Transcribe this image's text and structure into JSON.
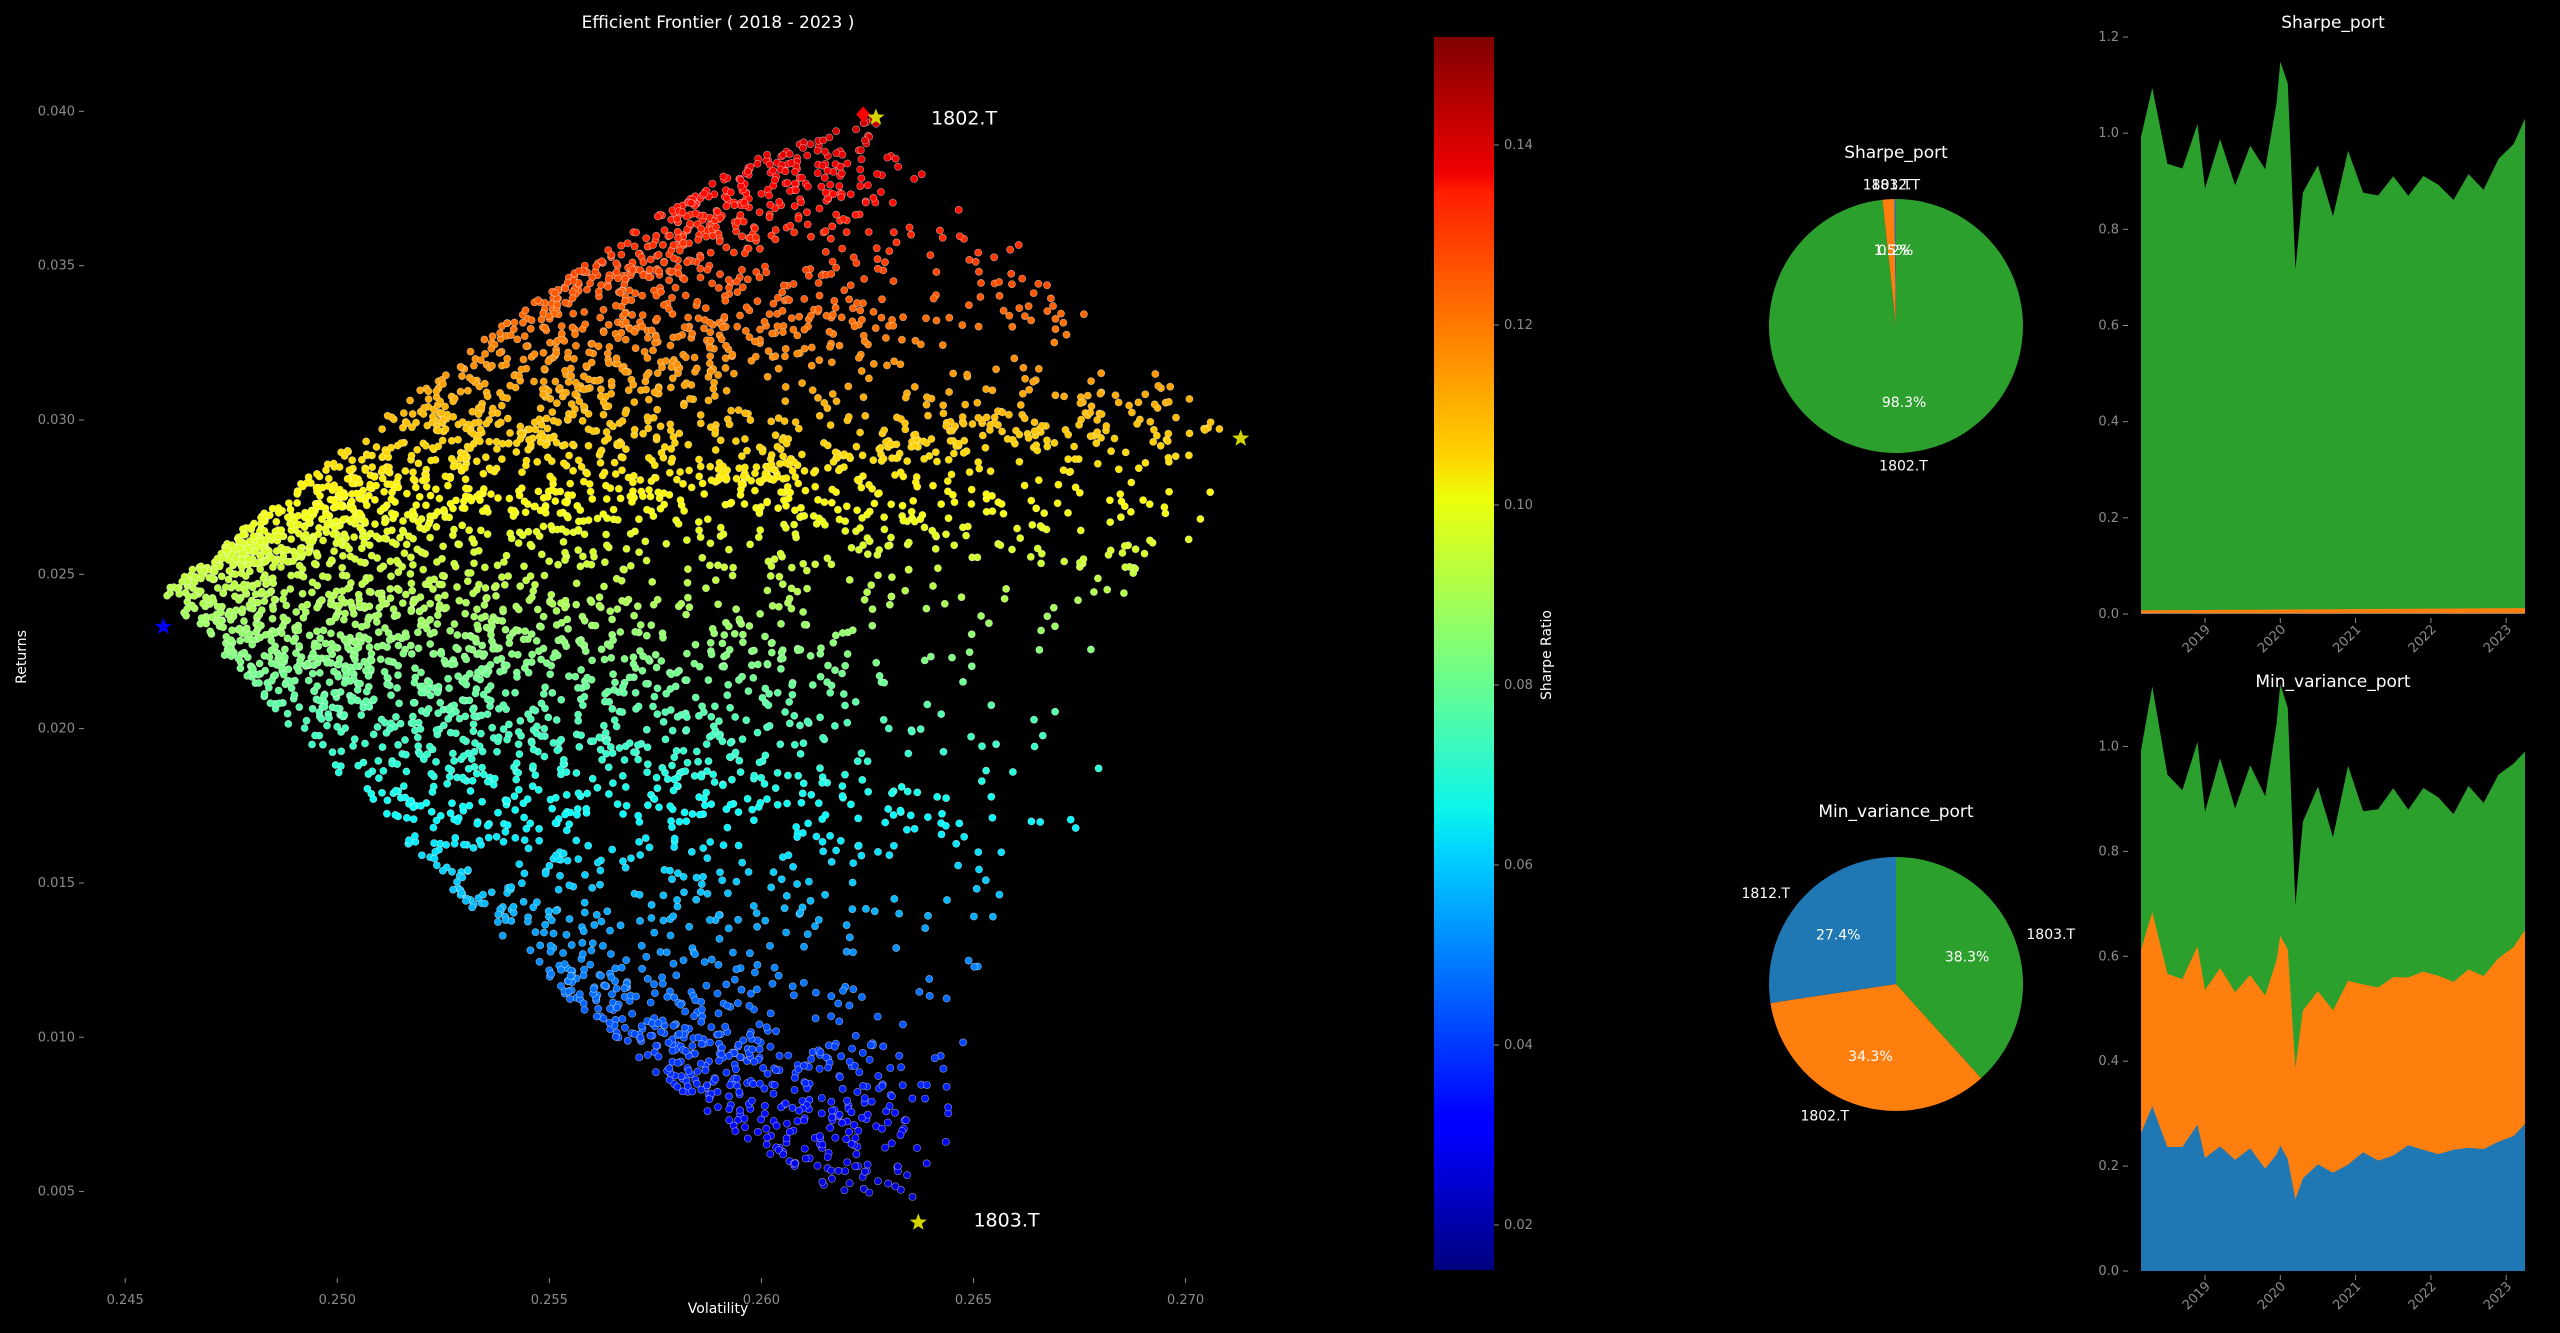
{
  "chart_data": [
    {
      "id": "frontier",
      "type": "scatter",
      "title": "Efficient Frontier  ( 2018 - 2023 )",
      "xlabel": "Volatility",
      "ylabel": "Returns",
      "xlim": [
        0.2445,
        0.2735
      ],
      "ylim": [
        0.0022,
        0.0415
      ],
      "xticks": [
        0.245,
        0.25,
        0.255,
        0.26,
        0.265,
        0.27
      ],
      "xtick_labels": [
        "0.245",
        "0.250",
        "0.255",
        "0.260",
        "0.265",
        "0.270"
      ],
      "yticks": [
        0.005,
        0.01,
        0.015,
        0.02,
        0.025,
        0.03,
        0.035,
        0.04
      ],
      "ytick_labels": [
        "0.005",
        "0.010",
        "0.015",
        "0.020",
        "0.025",
        "0.030",
        "0.035",
        "0.040"
      ],
      "grid": false,
      "colorscale": "jet",
      "asset_vertices": [
        {
          "name": "1802.T",
          "x": 0.2627,
          "y": 0.0398
        },
        {
          "name": "1812.T",
          "x": 0.2713,
          "y": 0.0294
        },
        {
          "name": "1803.T",
          "x": 0.2637,
          "y": 0.004
        }
      ],
      "min_vol_point": {
        "x": 0.2459,
        "y": 0.0233,
        "color": "#0000ff"
      },
      "max_sharpe_point": {
        "x": 0.2624,
        "y": 0.0399,
        "color": "#ff0000"
      },
      "star_color": "#d4d400",
      "annotations": [
        {
          "text": "1802.T",
          "x": 0.264,
          "y": 0.0398
        },
        {
          "text": "1803.T",
          "x": 0.265,
          "y": 0.0041
        }
      ]
    },
    {
      "id": "colorbar",
      "type": "colorbar",
      "label": "Sharpe Ratio",
      "range": [
        0.015,
        0.152
      ],
      "ticks": [
        0.02,
        0.04,
        0.06,
        0.08,
        0.1,
        0.12,
        0.14
      ],
      "tick_labels": [
        "0.02",
        "0.04",
        "0.06",
        "0.08",
        "0.10",
        "0.12",
        "0.14"
      ]
    },
    {
      "id": "sharpe_pie",
      "type": "pie",
      "title": "Sharpe_port",
      "slices": [
        {
          "label": "1802.T",
          "value": 98.3,
          "pct_label": "98.3%",
          "color": "#2ca02c"
        },
        {
          "label": "1812.T",
          "value": 1.5,
          "pct_label": "1.5%",
          "color": "#ff7f0e"
        },
        {
          "label": "1803.T",
          "value": 0.2,
          "pct_label": "0.2%",
          "color": "#1f77b4"
        }
      ]
    },
    {
      "id": "minvar_pie",
      "type": "pie",
      "title": "Min_variance_port",
      "slices": [
        {
          "label": "1803.T",
          "value": 38.3,
          "pct_label": "38.3%",
          "color": "#2ca02c"
        },
        {
          "label": "1802.T",
          "value": 34.3,
          "pct_label": "34.3%",
          "color": "#ff7f0e"
        },
        {
          "label": "1812.T",
          "value": 27.4,
          "pct_label": "27.4%",
          "color": "#1f77b4"
        }
      ]
    },
    {
      "id": "sharpe_area",
      "type": "area",
      "title": "Sharpe_port",
      "ylim": [
        0,
        1.2
      ],
      "yticks": [
        0.0,
        0.2,
        0.4,
        0.6,
        0.8,
        1.0,
        1.2
      ],
      "ytick_labels": [
        "0.0",
        "0.2",
        "0.4",
        "0.6",
        "0.8",
        "1.0",
        "1.2"
      ],
      "x_range_years": [
        2018.15,
        2023.25
      ],
      "xticks": [
        2019,
        2020,
        2021,
        2022,
        2023
      ],
      "xtick_labels": [
        "2019",
        "2020",
        "2021",
        "2022",
        "2023"
      ],
      "series": [
        {
          "color": "#1f77b4",
          "years": [
            2018.15,
            2023.25
          ],
          "values": [
            0.001,
            0.001
          ]
        },
        {
          "color": "#ff7f0e",
          "years": [
            2018.15,
            2023.25
          ],
          "values": [
            0.015,
            0.015
          ]
        },
        {
          "color": "#2ca02c",
          "years": [
            2018.15,
            2018.3,
            2018.5,
            2018.7,
            2018.9,
            2019.0,
            2019.2,
            2019.4,
            2019.6,
            2019.8,
            2019.95,
            2020.0,
            2020.1,
            2020.2,
            2020.3,
            2020.5,
            2020.7,
            2020.9,
            2021.1,
            2021.3,
            2021.5,
            2021.7,
            2021.9,
            2022.1,
            2022.3,
            2022.5,
            2022.7,
            2022.9,
            2023.1,
            2023.25
          ],
          "values": [
            1.0,
            1.08,
            0.95,
            0.93,
            1.0,
            0.88,
            0.98,
            0.9,
            0.97,
            0.93,
            1.05,
            1.13,
            1.1,
            0.73,
            0.88,
            0.93,
            0.83,
            0.97,
            0.86,
            0.88,
            0.92,
            0.85,
            0.92,
            0.9,
            0.85,
            0.92,
            0.88,
            0.95,
            0.98,
            1.02
          ]
        }
      ]
    },
    {
      "id": "minvar_area",
      "type": "area",
      "title": "Min_variance_port",
      "ylim": [
        0,
        1.1
      ],
      "yticks": [
        0.0,
        0.2,
        0.4,
        0.6,
        0.8,
        1.0
      ],
      "ytick_labels": [
        "0.0",
        "0.2",
        "0.4",
        "0.6",
        "0.8",
        "1.0"
      ],
      "x_range_years": [
        2018.15,
        2023.25
      ],
      "xticks": [
        2019,
        2020,
        2021,
        2022,
        2023
      ],
      "xtick_labels": [
        "2019",
        "2020",
        "2021",
        "2022",
        "2023"
      ],
      "series": [
        {
          "color": "#1f77b4",
          "years": [
            2018.15,
            2018.3,
            2018.5,
            2018.7,
            2018.9,
            2019.0,
            2019.2,
            2019.4,
            2019.6,
            2019.8,
            2019.95,
            2020.0,
            2020.1,
            2020.2,
            2020.3,
            2020.5,
            2020.7,
            2020.9,
            2021.1,
            2021.3,
            2021.5,
            2021.7,
            2021.9,
            2022.1,
            2022.3,
            2022.5,
            2022.7,
            2022.9,
            2023.1,
            2023.25
          ],
          "values": [
            0.27,
            0.3,
            0.25,
            0.24,
            0.26,
            0.21,
            0.23,
            0.22,
            0.23,
            0.2,
            0.21,
            0.22,
            0.21,
            0.15,
            0.18,
            0.2,
            0.19,
            0.21,
            0.21,
            0.22,
            0.23,
            0.22,
            0.24,
            0.23,
            0.22,
            0.24,
            0.23,
            0.25,
            0.26,
            0.27
          ]
        },
        {
          "color": "#ff7f0e",
          "years": [
            2018.15,
            2018.3,
            2018.5,
            2018.7,
            2018.9,
            2019.0,
            2019.2,
            2019.4,
            2019.6,
            2019.8,
            2019.95,
            2020.0,
            2020.1,
            2020.2,
            2020.3,
            2020.5,
            2020.7,
            2020.9,
            2021.1,
            2021.3,
            2021.5,
            2021.7,
            2021.9,
            2022.1,
            2022.3,
            2022.5,
            2022.7,
            2022.9,
            2023.1,
            2023.25
          ],
          "values": [
            0.62,
            0.67,
            0.58,
            0.56,
            0.6,
            0.53,
            0.57,
            0.54,
            0.56,
            0.53,
            0.58,
            0.62,
            0.61,
            0.4,
            0.5,
            0.53,
            0.5,
            0.56,
            0.53,
            0.55,
            0.57,
            0.54,
            0.58,
            0.57,
            0.54,
            0.58,
            0.56,
            0.6,
            0.62,
            0.64
          ]
        },
        {
          "color": "#2ca02c",
          "years": [
            2018.15,
            2018.3,
            2018.5,
            2018.7,
            2018.9,
            2019.0,
            2019.2,
            2019.4,
            2019.6,
            2019.8,
            2019.95,
            2020.0,
            2020.1,
            2020.2,
            2020.3,
            2020.5,
            2020.7,
            2020.9,
            2021.1,
            2021.3,
            2021.5,
            2021.7,
            2021.9,
            2022.1,
            2022.3,
            2022.5,
            2022.7,
            2022.9,
            2023.1,
            2023.25
          ],
          "values": [
            1.0,
            1.1,
            0.96,
            0.92,
            0.99,
            0.87,
            0.97,
            0.89,
            0.96,
            0.91,
            1.03,
            1.1,
            1.07,
            0.71,
            0.86,
            0.92,
            0.83,
            0.97,
            0.86,
            0.89,
            0.93,
            0.86,
            0.93,
            0.91,
            0.86,
            0.93,
            0.89,
            0.95,
            0.97,
            0.98
          ]
        }
      ]
    }
  ]
}
